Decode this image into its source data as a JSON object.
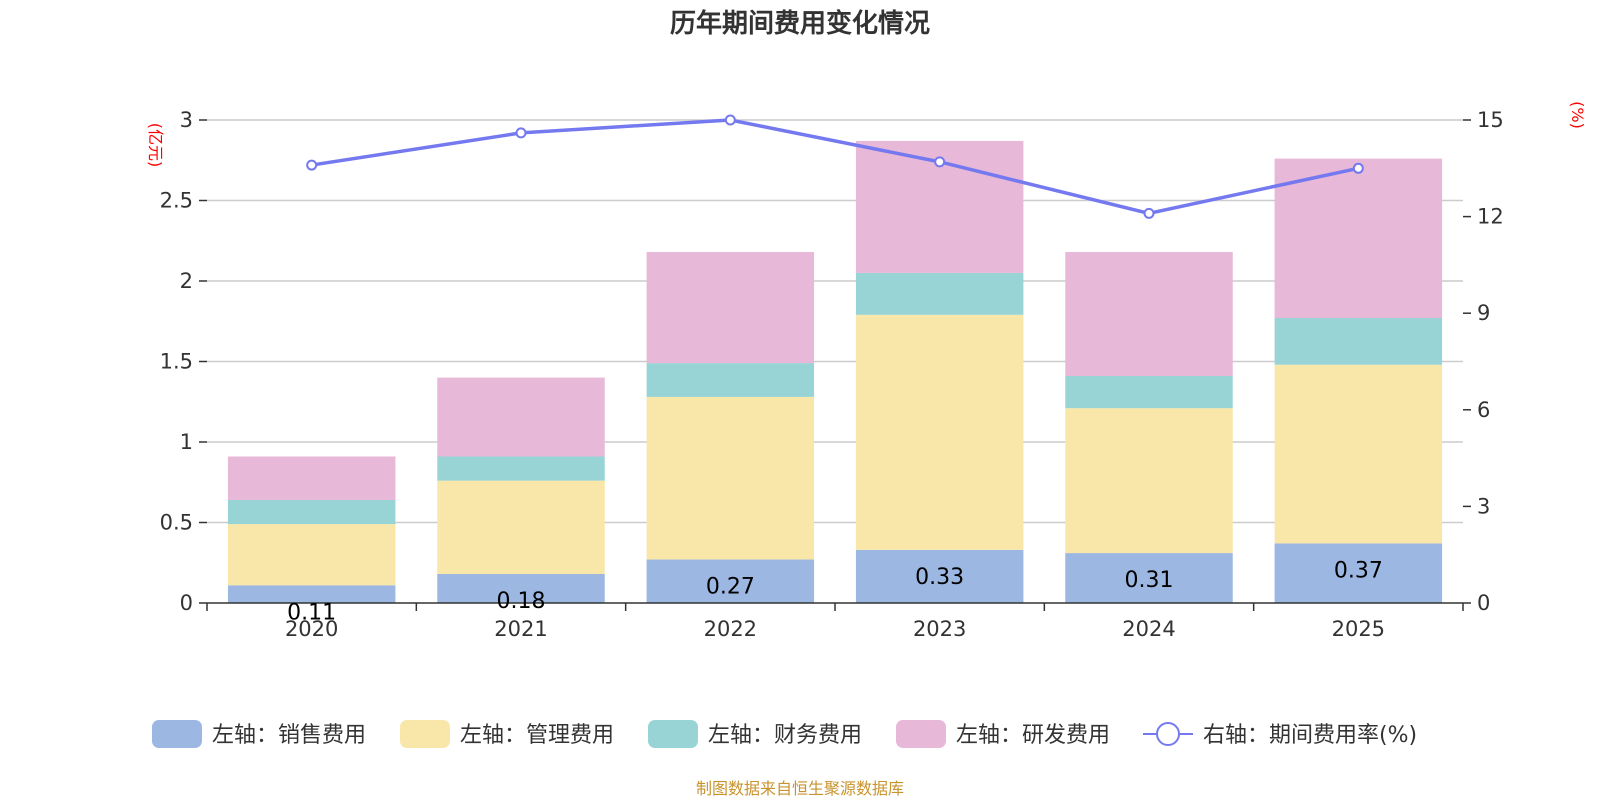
{
  "chart_data": {
    "type": "bar",
    "stacked": true,
    "title": "历年期间费用变化情况",
    "categories": [
      "2020",
      "2021",
      "2022",
      "2023",
      "2024",
      "2025"
    ],
    "left_axis": {
      "unit": "(亿元)",
      "ylim": [
        0,
        3
      ],
      "ticks": [
        "0",
        "0.5",
        "1",
        "1.5",
        "2",
        "2.5",
        "3"
      ],
      "tick_values": [
        0,
        0.5,
        1,
        1.5,
        2,
        2.5,
        3
      ]
    },
    "right_axis": {
      "unit": "(%)",
      "ylim": [
        0,
        15
      ],
      "ticks": [
        "0",
        "3",
        "6",
        "9",
        "12",
        "15"
      ],
      "tick_values": [
        0,
        3,
        6,
        9,
        12,
        15
      ]
    },
    "series": [
      {
        "name": "左轴：销售费用",
        "type": "bar",
        "color": "#9bb7e2",
        "values": [
          0.11,
          0.18,
          0.27,
          0.33,
          0.31,
          0.37
        ],
        "labels": [
          "0.11",
          "0.18",
          "0.27",
          "0.33",
          "0.31",
          "0.37"
        ]
      },
      {
        "name": "左轴：管理费用",
        "type": "bar",
        "color": "#f8e7a8",
        "values": [
          0.38,
          0.58,
          1.01,
          1.46,
          0.9,
          1.11
        ]
      },
      {
        "name": "左轴：财务费用",
        "type": "bar",
        "color": "#98d4d5",
        "values": [
          0.15,
          0.15,
          0.21,
          0.26,
          0.2,
          0.29
        ]
      },
      {
        "name": "左轴：研发费用",
        "type": "bar",
        "color": "#e8b8d8",
        "values": [
          0.27,
          0.49,
          0.69,
          0.82,
          0.77,
          0.99
        ]
      },
      {
        "name": "右轴：期间费用率(%)",
        "type": "line",
        "axis": "right",
        "color": "#7479ef",
        "values": [
          13.6,
          14.6,
          15.0,
          13.7,
          12.1,
          13.5
        ]
      }
    ],
    "legend_position": "bottom"
  },
  "source": "制图数据来自恒生聚源数据库"
}
